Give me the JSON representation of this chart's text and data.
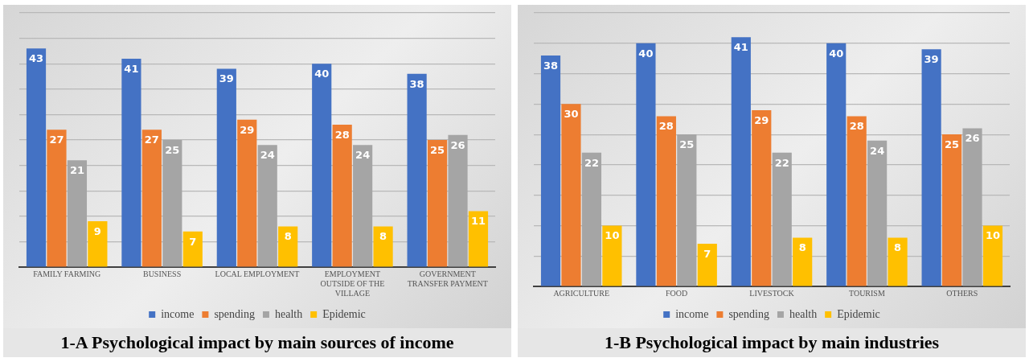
{
  "chart_data": [
    {
      "type": "bar",
      "title": "1-A Psychological impact by main sources of income",
      "categories": [
        "FAMILY FARMING",
        "BUSINESS",
        "LOCAL EMPLOYMENT",
        "EMPLOYMENT OUTSIDE OF THE VILLAGE",
        "GOVERNMENT TRANSFER PAYMENT"
      ],
      "series": [
        {
          "name": "income",
          "color": "#4472c4",
          "values": [
            43,
            41,
            39,
            40,
            38
          ]
        },
        {
          "name": "spending",
          "color": "#ed7d31",
          "values": [
            27,
            27,
            29,
            28,
            25
          ]
        },
        {
          "name": "health",
          "color": "#a5a5a5",
          "values": [
            21,
            25,
            24,
            24,
            26
          ]
        },
        {
          "name": "Epidemic",
          "color": "#ffc000",
          "values": [
            9,
            7,
            8,
            8,
            11
          ]
        }
      ],
      "ylim": [
        0,
        50
      ],
      "yticks": [
        {
          "value": 0,
          "label": null
        },
        {
          "value": 5,
          "label": null
        },
        {
          "value": 10,
          "label": null
        },
        {
          "value": 15,
          "label": null
        },
        {
          "value": 20,
          "label": null
        },
        {
          "value": 25,
          "label": null
        },
        {
          "value": 30,
          "label": null
        },
        {
          "value": 35,
          "label": null
        },
        {
          "value": 40,
          "label": null
        },
        {
          "value": 45,
          "label": null
        },
        {
          "value": 50,
          "label": null
        }
      ],
      "tick_labels": "x",
      "grid": "y",
      "legend": "bottom",
      "data_labels": true
    },
    {
      "type": "bar",
      "title": "1-B Psychological impact by main industries",
      "categories": [
        "AGRICULTURE",
        "FOOD",
        "LIVESTOCK",
        "TOURISM",
        "OTHERS"
      ],
      "series": [
        {
          "name": "income",
          "color": "#4472c4",
          "values": [
            38,
            40,
            41,
            40,
            39
          ]
        },
        {
          "name": "spending",
          "color": "#ed7d31",
          "values": [
            30,
            28,
            29,
            28,
            25
          ]
        },
        {
          "name": "health",
          "color": "#a5a5a5",
          "values": [
            22,
            25,
            22,
            24,
            26
          ]
        },
        {
          "name": "Epidemic",
          "color": "#ffc000",
          "values": [
            10,
            7,
            8,
            8,
            10
          ]
        }
      ],
      "ylim": [
        0,
        45
      ],
      "yticks": [
        {
          "value": 0,
          "label": null
        },
        {
          "value": 5,
          "label": null
        },
        {
          "value": 10,
          "label": null
        },
        {
          "value": 15,
          "label": null
        },
        {
          "value": 20,
          "label": null
        },
        {
          "value": 25,
          "label": null
        },
        {
          "value": 30,
          "label": null
        },
        {
          "value": 35,
          "label": null
        },
        {
          "value": 40,
          "label": null
        },
        {
          "value": 45,
          "label": null
        }
      ],
      "tick_labels": "x",
      "grid": "y",
      "legend": "bottom",
      "data_labels": true
    }
  ]
}
